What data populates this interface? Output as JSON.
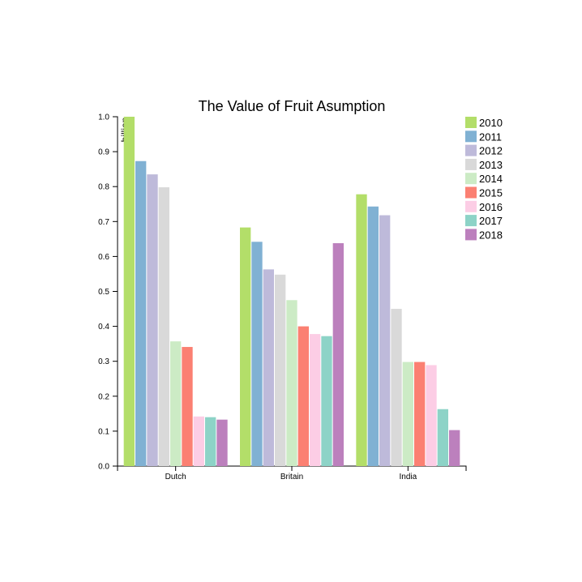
{
  "chart_data": {
    "type": "bar",
    "title": "The Value of Fruit Asumption",
    "ylabel": "billion",
    "xlabel": "",
    "ylim": [
      0,
      1.0
    ],
    "y_ticks": [
      "0.0",
      "0.1",
      "0.2",
      "0.3",
      "0.4",
      "0.5",
      "0.6",
      "0.7",
      "0.8",
      "0.9",
      "1.0"
    ],
    "categories": [
      "Dutch",
      "Britain",
      "India"
    ],
    "legend_position": "top-right",
    "grid": false,
    "series": [
      {
        "name": "2010",
        "color": "#b3de69",
        "values": [
          1.0,
          0.683,
          0.778
        ]
      },
      {
        "name": "2011",
        "color": "#80b1d3",
        "values": [
          0.873,
          0.642,
          0.743
        ]
      },
      {
        "name": "2012",
        "color": "#bebada",
        "values": [
          0.835,
          0.563,
          0.718
        ]
      },
      {
        "name": "2013",
        "color": "#d9d9d9",
        "values": [
          0.798,
          0.548,
          0.45
        ]
      },
      {
        "name": "2014",
        "color": "#ccebc5",
        "values": [
          0.357,
          0.475,
          0.298
        ]
      },
      {
        "name": "2015",
        "color": "#fb8072",
        "values": [
          0.341,
          0.4,
          0.298
        ]
      },
      {
        "name": "2016",
        "color": "#fccde5",
        "values": [
          0.142,
          0.378,
          0.289
        ]
      },
      {
        "name": "2017",
        "color": "#8dd3c7",
        "values": [
          0.14,
          0.372,
          0.163
        ]
      },
      {
        "name": "2018",
        "color": "#bc80bd",
        "values": [
          0.133,
          0.638,
          0.103
        ]
      }
    ]
  }
}
